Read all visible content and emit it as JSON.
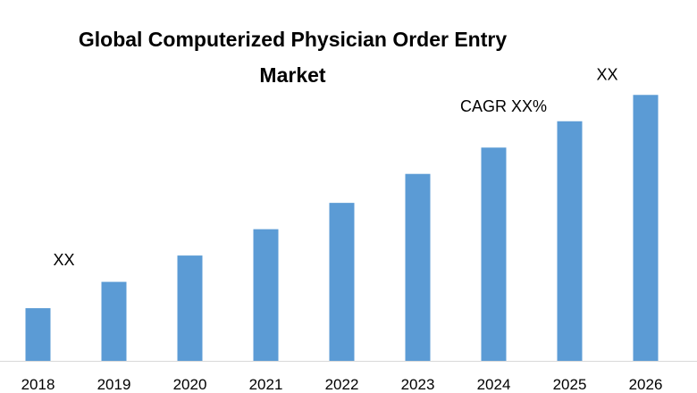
{
  "chart_data": {
    "type": "bar",
    "title_lines": [
      "Global Computerized Physician Order Entry",
      "Market"
    ],
    "categories": [
      "2018",
      "2019",
      "2020",
      "2021",
      "2022",
      "2023",
      "2024",
      "2025",
      "2026"
    ],
    "values": [
      2.0,
      3.0,
      4.0,
      5.0,
      6.0,
      7.1,
      8.1,
      9.1,
      10.1
    ],
    "ylim": [
      0,
      11.5
    ],
    "grid": false,
    "legend": "none",
    "bar_color": "#5b9bd5",
    "annotations": [
      {
        "text": "XX",
        "category": "2018"
      },
      {
        "text": "CAGR XX%",
        "category": "2024"
      },
      {
        "text": "XX",
        "category": "2026"
      }
    ]
  }
}
